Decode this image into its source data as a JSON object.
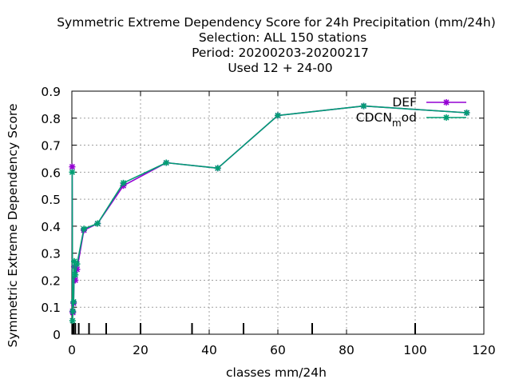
{
  "chart_data": {
    "type": "line",
    "title_lines": [
      "Symmetric Extreme Dependency Score  for 24h Precipitation (mm/24h)",
      "Selection: ALL    150 stations",
      "Period: 20200203-20200217",
      "Used  12 + 24-00"
    ],
    "xlabel": "classes mm/24h",
    "ylabel": "Symmetric Extreme Dependency Score",
    "xlim": [
      0,
      120
    ],
    "ylim": [
      0,
      0.9
    ],
    "x_ticks": [
      0,
      20,
      40,
      60,
      80,
      100,
      120
    ],
    "y_ticks": [
      0,
      0.1,
      0.2,
      0.3,
      0.4,
      0.5,
      0.6,
      0.7,
      0.8,
      0.9
    ],
    "x_tick_labels": [
      "0",
      "20",
      "40",
      "60",
      "80",
      "100",
      "120"
    ],
    "y_tick_labels": [
      "0",
      "0.1",
      "0.2",
      "0.3",
      "0.4",
      "0.5",
      "0.6",
      "0.7",
      "0.8",
      "0.9"
    ],
    "grid": true,
    "legend_position": "top-right",
    "class_marks": [
      0.1,
      0.2,
      0.3,
      0.5,
      1,
      2,
      5,
      10,
      20,
      35,
      50,
      70,
      100
    ],
    "series": [
      {
        "name": "DEF",
        "color": "#9400d3",
        "x": [
          0.1,
          0.2,
          0.3,
          0.5,
          0.7,
          1,
          1.5,
          3.5,
          7.5,
          15,
          27.5,
          42.5,
          60,
          85,
          115
        ],
        "y": [
          0.62,
          0.085,
          0.08,
          0.115,
          0.25,
          0.2,
          0.24,
          0.385,
          0.41,
          0.55,
          0.635,
          0.615,
          0.81,
          0.845,
          0.82
        ]
      },
      {
        "name": "CDCN_mod",
        "color": "#009e73",
        "x": [
          0.1,
          0.2,
          0.3,
          0.5,
          0.7,
          1,
          1.5,
          3.5,
          7.5,
          15,
          27.5,
          42.5,
          60,
          85,
          115
        ],
        "y": [
          0.6,
          0.05,
          0.085,
          0.12,
          0.27,
          0.22,
          0.26,
          0.39,
          0.41,
          0.56,
          0.635,
          0.615,
          0.81,
          0.845,
          0.82
        ]
      }
    ]
  }
}
